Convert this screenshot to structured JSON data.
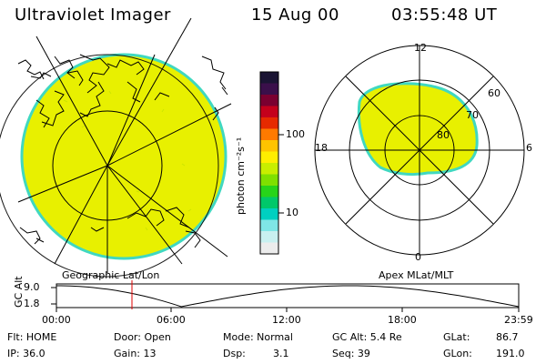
{
  "header": {
    "instrument": "Ultraviolet Imager",
    "date": "15 Aug 00",
    "time": "03:55:48 UT"
  },
  "colorbar": {
    "unit_label": "photon cm⁻²s⁻¹",
    "ticks": [
      "100",
      "10"
    ],
    "colors_top_to_bottom": [
      "#1a1433",
      "#3a0f4a",
      "#7a0030",
      "#c4001c",
      "#e62a00",
      "#ff7a00",
      "#ffc400",
      "#ffee00",
      "#c8ee00",
      "#7fe000",
      "#27d41a",
      "#00c86a",
      "#00d0c0",
      "#7fe6e6",
      "#c8f0f0",
      "#ececec"
    ]
  },
  "left_panel": {
    "caption": "Geographic Lat/Lon",
    "fill_color": "#e8f000",
    "rim_color": "#40d8c0"
  },
  "right_panel": {
    "caption": "Apex MLat/MLT",
    "mlt_labels": {
      "top": "12",
      "bottom": "0",
      "left": "18",
      "right": "6"
    },
    "lat_labels": [
      "60",
      "70",
      "80"
    ]
  },
  "timeline": {
    "axis_title": "GC Alt",
    "y_ticks": [
      "9.0",
      "1.8"
    ],
    "x_ticks": [
      "00:00",
      "06:00",
      "12:00",
      "18:00",
      "23:59"
    ],
    "cursor_color": "#e00000"
  },
  "info": {
    "flt": "Flt: HOME",
    "ip": "IP: 36.0",
    "door": "Door: Open",
    "gain": "Gain: 13",
    "mode": "Mode: Normal",
    "dsp_label": "Dsp:",
    "dsp_value": "3.1",
    "gcalt": "GC Alt: 5.4 Re",
    "seq": "Seq: 39",
    "glat_label": "GLat:",
    "glat_value": "86.7",
    "glon_label": "GLon:",
    "glon_value": "191.0"
  }
}
